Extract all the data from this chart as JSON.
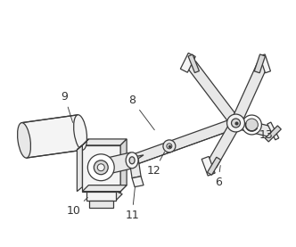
{
  "bg_color": "#ffffff",
  "line_color": "#3a3a3a",
  "label_color": "#333333",
  "figsize": [
    3.32,
    2.77
  ],
  "dpi": 100,
  "face_light": "#f4f4f4",
  "face_mid": "#e8e8e8",
  "face_dark": "#d8d8d8",
  "face_darker": "#c8c8c8"
}
